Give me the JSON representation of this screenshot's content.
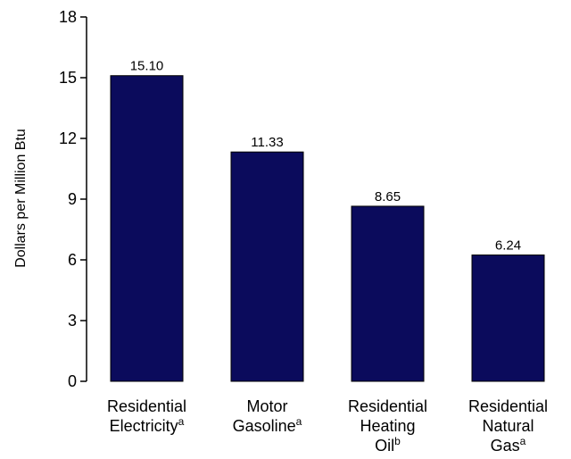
{
  "chart_data": {
    "type": "bar",
    "title": "",
    "xlabel": "",
    "ylabel": "Dollars per Million Btu",
    "ylim": [
      0,
      18
    ],
    "yticks": [
      0,
      3,
      6,
      9,
      12,
      15,
      18
    ],
    "grid": false,
    "categories": [
      {
        "lines": [
          "Residential",
          "Electricity"
        ],
        "footnote": "a"
      },
      {
        "lines": [
          "Motor",
          "Gasoline"
        ],
        "footnote": "a"
      },
      {
        "lines": [
          "Residential",
          "Heating",
          "Oil"
        ],
        "footnote": "b"
      },
      {
        "lines": [
          "Residential",
          "Natural",
          "Gas"
        ],
        "footnote": "a"
      }
    ],
    "values": [
      15.1,
      11.33,
      8.65,
      6.24
    ],
    "value_labels": [
      "15.10",
      "11.33",
      "8.65",
      "6.24"
    ],
    "colors": {
      "bar": "#0b0b5c",
      "bar_outline": "#000000",
      "axis": "#000000"
    }
  }
}
